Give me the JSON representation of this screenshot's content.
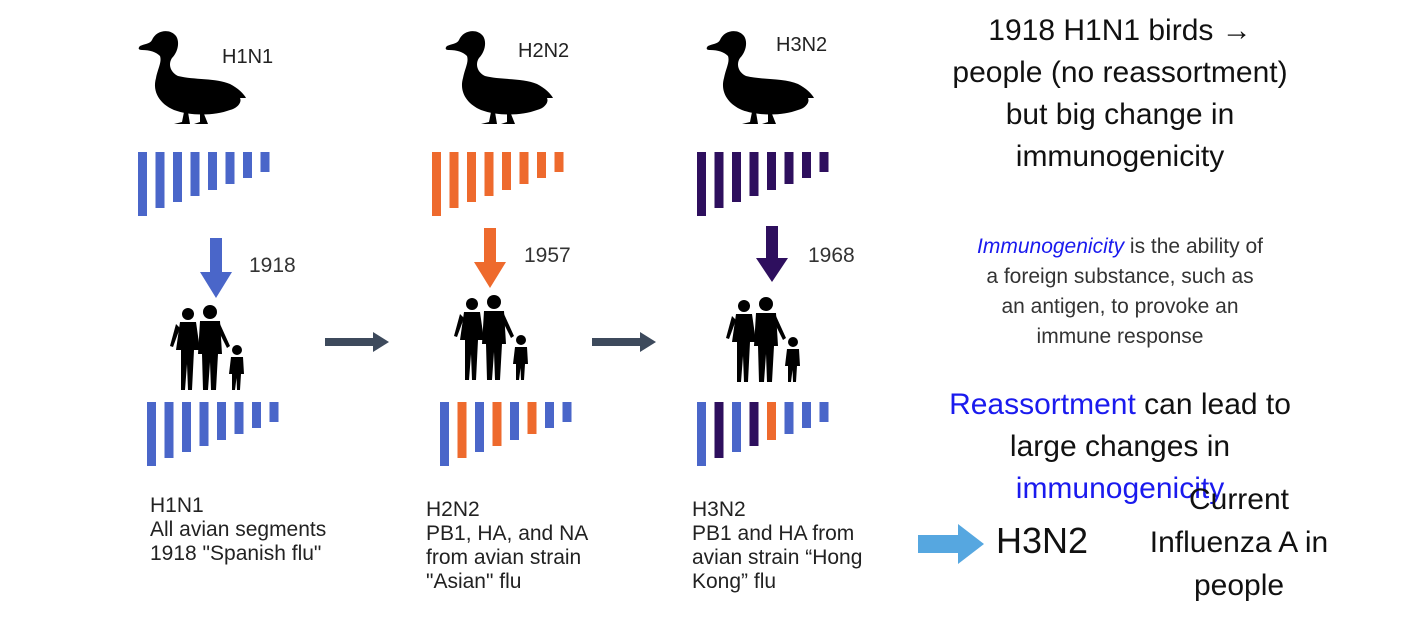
{
  "colors": {
    "avian_blue": "#4a66c9",
    "h2n2_orange": "#ee6a2d",
    "h3n2_purple": "#2e0f5e",
    "flow_arrow": "#3d4a5c",
    "h3n2_arrow": "#56a7e0",
    "emphasis_blue": "#1a1aee"
  },
  "icons": {
    "bird": "duck-silhouette-icon",
    "people": "family-silhouette-icon"
  },
  "columns": [
    {
      "bird_label": "H1N1",
      "year": "1918",
      "arrow_color": "#4a66c9",
      "bird_segments": [
        "#4a66c9",
        "#4a66c9",
        "#4a66c9",
        "#4a66c9",
        "#4a66c9",
        "#4a66c9",
        "#4a66c9",
        "#4a66c9"
      ],
      "human_segments": [
        "#4a66c9",
        "#4a66c9",
        "#4a66c9",
        "#4a66c9",
        "#4a66c9",
        "#4a66c9",
        "#4a66c9",
        "#4a66c9"
      ],
      "caption": "H1N1\nAll avian segments\n1918 \"Spanish flu\""
    },
    {
      "bird_label": "H2N2",
      "year": "1957",
      "arrow_color": "#ee6a2d",
      "bird_segments": [
        "#ee6a2d",
        "#ee6a2d",
        "#ee6a2d",
        "#ee6a2d",
        "#ee6a2d",
        "#ee6a2d",
        "#ee6a2d",
        "#ee6a2d"
      ],
      "human_segments": [
        "#4a66c9",
        "#ee6a2d",
        "#4a66c9",
        "#ee6a2d",
        "#4a66c9",
        "#ee6a2d",
        "#4a66c9",
        "#4a66c9"
      ],
      "caption": "H2N2\nPB1, HA, and NA\nfrom avian strain\n\"Asian\" flu"
    },
    {
      "bird_label": "H3N2",
      "year": "1968",
      "arrow_color": "#2e0f5e",
      "bird_segments": [
        "#2e0f5e",
        "#2e0f5e",
        "#2e0f5e",
        "#2e0f5e",
        "#2e0f5e",
        "#2e0f5e",
        "#2e0f5e",
        "#2e0f5e"
      ],
      "human_segments": [
        "#4a66c9",
        "#2e0f5e",
        "#4a66c9",
        "#2e0f5e",
        "#ee6a2d",
        "#4a66c9",
        "#4a66c9",
        "#4a66c9"
      ],
      "caption": "H3N2\nPB1 and HA from\navian strain “Hong\nKong” flu"
    }
  ],
  "notes": {
    "no_reassortment": "1918 H1N1 birds →\npeople (no reassortment)\nbut big change in\nimmunogenicity",
    "definition_term": "Immunogenicity",
    "definition_rest": " is the ability of\na foreign substance, such as\nan antigen, to provoke an\nimmune response",
    "reassortment_term": "Reassortment",
    "reassortment_mid": " can lead to\nlarge changes in\n",
    "reassortment_end": "immunogenicity"
  },
  "current": {
    "strain": "H3N2",
    "label": "Current\nInfluenza A in\npeople"
  }
}
